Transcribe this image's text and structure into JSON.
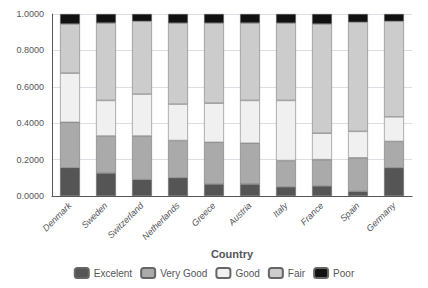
{
  "chart_data": {
    "type": "bar",
    "stacked": true,
    "xlabel": "Country",
    "categories": [
      "Denmark",
      "Sweden",
      "Switzerland",
      "Netherlands",
      "Greece",
      "Austria",
      "Italy",
      "France",
      "Spain",
      "Germany"
    ],
    "series": [
      {
        "name": "Excelent",
        "color": "#555555",
        "values": [
          0.155,
          0.125,
          0.09,
          0.1,
          0.065,
          0.065,
          0.05,
          0.055,
          0.025,
          0.155
        ]
      },
      {
        "name": "Very Good",
        "color": "#aaaaaa",
        "values": [
          0.25,
          0.205,
          0.24,
          0.205,
          0.23,
          0.225,
          0.145,
          0.145,
          0.185,
          0.145
        ]
      },
      {
        "name": "Good",
        "color": "#f0f0f0",
        "values": [
          0.27,
          0.195,
          0.23,
          0.2,
          0.215,
          0.235,
          0.33,
          0.145,
          0.145,
          0.135
        ]
      },
      {
        "name": "Fair",
        "color": "#cccccc",
        "values": [
          0.27,
          0.425,
          0.4,
          0.445,
          0.44,
          0.425,
          0.425,
          0.6,
          0.6,
          0.525
        ]
      },
      {
        "name": "Poor",
        "color": "#111111",
        "values": [
          0.055,
          0.05,
          0.04,
          0.05,
          0.05,
          0.05,
          0.05,
          0.055,
          0.045,
          0.04
        ]
      }
    ],
    "ylim": [
      0.0,
      1.0
    ],
    "yticks": [
      {
        "value": 0.0,
        "label": "0.0000"
      },
      {
        "value": 0.2,
        "label": "0.2000"
      },
      {
        "value": 0.4,
        "label": "0.4000"
      },
      {
        "value": 0.6,
        "label": "0.6000"
      },
      {
        "value": 0.8,
        "label": "0.8000"
      },
      {
        "value": 1.0,
        "label": "1.0000"
      }
    ],
    "grid": true,
    "legend": "bottom"
  }
}
